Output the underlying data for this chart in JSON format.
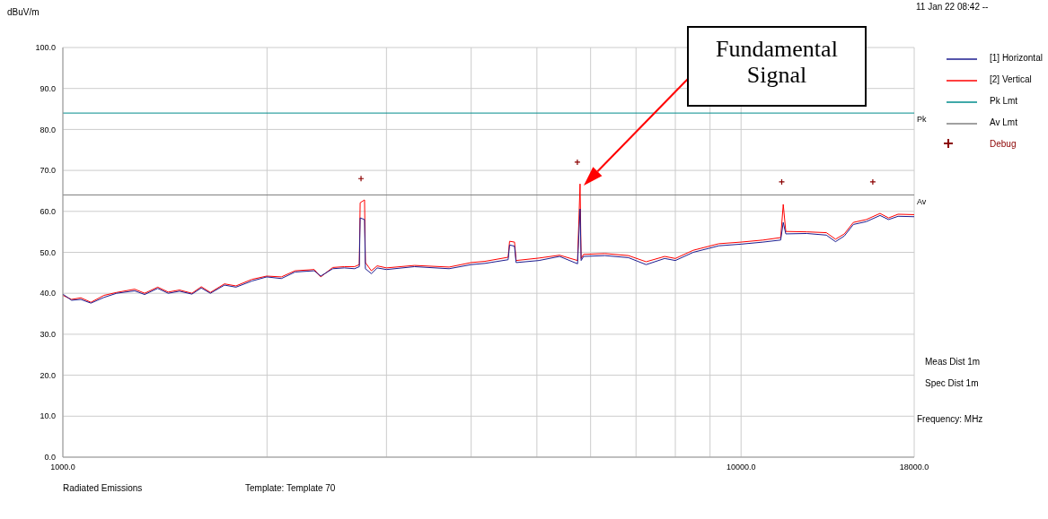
{
  "chart_data": {
    "type": "line",
    "ylabel": "dBuV/m",
    "xlabel": "Frequency: MHz",
    "log": "x",
    "xlim": [
      1000,
      18000
    ],
    "xticks": [
      {
        "value": 1000,
        "label": "1000.0"
      },
      {
        "value": 2000,
        "label": null
      },
      {
        "value": 3000,
        "label": null
      },
      {
        "value": 4000,
        "label": null
      },
      {
        "value": 5000,
        "label": null
      },
      {
        "value": 6000,
        "label": null
      },
      {
        "value": 7000,
        "label": null
      },
      {
        "value": 8000,
        "label": null
      },
      {
        "value": 9000,
        "label": null
      },
      {
        "value": 10000,
        "label": "10000.0"
      },
      {
        "value": 18000,
        "label": "18000.0"
      }
    ],
    "ylim": [
      0,
      100
    ],
    "yticks": [
      {
        "value": 0,
        "label": "0.0"
      },
      {
        "value": 10,
        "label": "10.0"
      },
      {
        "value": 20,
        "label": "20.0"
      },
      {
        "value": 30,
        "label": "30.0"
      },
      {
        "value": 40,
        "label": "40.0"
      },
      {
        "value": 50,
        "label": "50.0"
      },
      {
        "value": 60,
        "label": "60.0"
      },
      {
        "value": 70,
        "label": "70.0"
      },
      {
        "value": 80,
        "label": "80.0"
      },
      {
        "value": 90,
        "label": "90.0"
      },
      {
        "value": 100,
        "label": "100.0"
      }
    ],
    "grid": true,
    "legend": "top right",
    "line_style": "solid",
    "marker": "none",
    "series": [
      {
        "name": "[1] Horizontal",
        "color": "#1c1c8f",
        "x": [
          1000,
          1030,
          1063,
          1100,
          1150,
          1200,
          1276,
          1320,
          1380,
          1430,
          1486,
          1550,
          1600,
          1650,
          1731,
          1800,
          1900,
          1998,
          2100,
          2200,
          2348,
          2400,
          2500,
          2600,
          2692,
          2736,
          2744,
          2785,
          2793,
          2850,
          2907,
          3000,
          3300,
          3711,
          4000,
          4191,
          4535,
          4557,
          4634,
          4659,
          5034,
          5400,
          5740,
          5789,
          5810,
          5858,
          6300,
          6823,
          7245,
          7716,
          8000,
          8500,
          9275,
          10000,
          10780,
          11440,
          11540,
          11640,
          12500,
          13360,
          13780,
          14200,
          14640,
          15300,
          16030,
          16500,
          17040,
          18000
        ],
        "values": [
          39.8,
          38.3,
          38.5,
          37.6,
          39.0,
          40.0,
          40.6,
          39.7,
          41.2,
          40.0,
          40.5,
          39.8,
          41.3,
          40.0,
          42.0,
          41.5,
          43.0,
          44.0,
          43.6,
          45.2,
          45.5,
          44.2,
          46.0,
          46.2,
          46.0,
          46.5,
          58.4,
          58.0,
          46.0,
          44.8,
          46.2,
          45.8,
          46.5,
          46.0,
          47.0,
          47.3,
          48.2,
          51.8,
          51.5,
          47.5,
          48.0,
          49.0,
          47.2,
          60.6,
          48.0,
          49.0,
          49.2,
          48.7,
          47.0,
          48.5,
          48.0,
          50.0,
          51.6,
          52.0,
          52.5,
          53.0,
          57.3,
          54.5,
          54.6,
          54.2,
          52.6,
          54.0,
          56.8,
          57.5,
          59.0,
          58.0,
          58.8,
          58.7
        ]
      },
      {
        "name": "[2] Vertical",
        "color": "#ff0000",
        "x": [
          1000,
          1030,
          1063,
          1100,
          1150,
          1200,
          1276,
          1320,
          1380,
          1430,
          1486,
          1550,
          1600,
          1650,
          1731,
          1800,
          1900,
          1998,
          2100,
          2200,
          2348,
          2400,
          2500,
          2600,
          2692,
          2736,
          2744,
          2785,
          2793,
          2850,
          2907,
          3000,
          3300,
          3711,
          4000,
          4191,
          4535,
          4557,
          4634,
          4659,
          5034,
          5400,
          5740,
          5789,
          5810,
          5858,
          6300,
          6823,
          7245,
          7716,
          8000,
          8500,
          9275,
          10000,
          10780,
          11440,
          11540,
          11640,
          12500,
          13360,
          13780,
          14200,
          14640,
          15300,
          16030,
          16500,
          17040,
          18000
        ],
        "values": [
          39.5,
          38.5,
          38.9,
          37.8,
          39.5,
          40.2,
          41.0,
          40.0,
          41.5,
          40.3,
          40.8,
          40.0,
          41.6,
          40.2,
          42.3,
          41.8,
          43.4,
          44.2,
          44.0,
          45.5,
          45.8,
          44.0,
          46.3,
          46.5,
          46.5,
          47.0,
          62.1,
          62.8,
          47.5,
          45.5,
          46.7,
          46.2,
          46.8,
          46.4,
          47.5,
          47.8,
          48.8,
          52.7,
          52.5,
          48.0,
          48.6,
          49.3,
          48.0,
          66.7,
          48.5,
          49.5,
          49.7,
          49.2,
          47.7,
          49.0,
          48.5,
          50.5,
          52.1,
          52.5,
          53.0,
          53.6,
          61.7,
          55.1,
          55.0,
          54.8,
          53.2,
          54.5,
          57.3,
          58.0,
          59.5,
          58.4,
          59.3,
          59.2
        ]
      },
      {
        "name": "Pk Lmt",
        "color": "#008b8b",
        "x": [
          1000,
          18000
        ],
        "values": [
          84.0,
          84.0
        ]
      },
      {
        "name": "Av Lmt",
        "color": "#808080",
        "x": [
          1000,
          18000
        ],
        "values": [
          64.0,
          64.0
        ]
      },
      {
        "name": "Debug",
        "type": "scatter",
        "marker": "cross",
        "color": "#8b0000",
        "x": [
          2752,
          5736,
          11480,
          15640
        ],
        "values": [
          68.0,
          72.0,
          67.2,
          67.2
        ]
      }
    ],
    "annotations": [
      "Fundamental Signal",
      {
        "text": "Pk",
        "x": 18000,
        "y": 84.0
      },
      {
        "text": "Av",
        "x": 18000,
        "y": 64.0
      },
      "11 Jan 22 08:42 --",
      "Meas Dist 1m",
      "Spec Dist 1m",
      "Radiated Emissions",
      "Template: Template 70"
    ]
  }
}
